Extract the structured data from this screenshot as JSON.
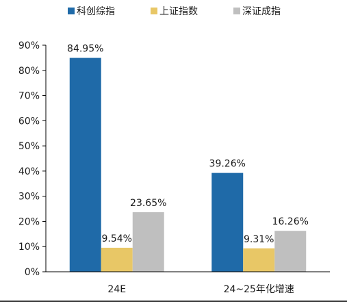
{
  "chart_data": {
    "type": "bar",
    "categories": [
      "24E",
      "24~25年化增速"
    ],
    "series": [
      {
        "name": "科创综指",
        "values": [
          84.95,
          39.26
        ],
        "labels": [
          "84.95%",
          "39.26%"
        ],
        "color": "#1f6aa8"
      },
      {
        "name": "上证指数",
        "values": [
          9.54,
          9.31
        ],
        "labels": [
          "9.54%",
          "9.31%"
        ],
        "color": "#e8c766"
      },
      {
        "name": "深证成指",
        "values": [
          23.65,
          16.26
        ],
        "labels": [
          "23.65%",
          "16.26%"
        ],
        "color": "#bfbfbf"
      }
    ],
    "ylim": [
      0,
      90
    ],
    "yticks": [
      "0%",
      "10%",
      "20%",
      "30%",
      "40%",
      "50%",
      "60%",
      "70%",
      "80%",
      "90%"
    ],
    "legend_position": "top",
    "grid": false
  }
}
